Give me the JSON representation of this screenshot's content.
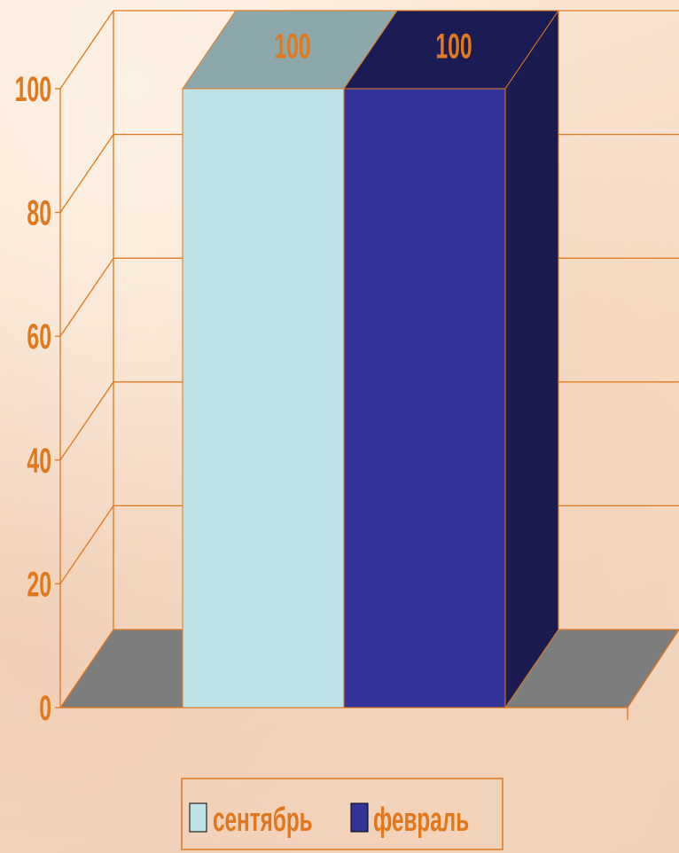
{
  "chart_data": {
    "type": "bar",
    "style": "3d-column",
    "title": "",
    "xlabel": "",
    "ylabel": "",
    "categories": [
      ""
    ],
    "series": [
      {
        "name": "сентябрь",
        "values": [
          100
        ],
        "color": "#bde3e6"
      },
      {
        "name": "февраль",
        "values": [
          100
        ],
        "color": "#333399"
      }
    ],
    "ylim": [
      0,
      100
    ],
    "yticks": [
      "0",
      "20",
      "40",
      "60",
      "80",
      "100"
    ],
    "data_labels": [
      "100",
      "100"
    ],
    "grid": true,
    "legend_position": "bottom-center",
    "colors": {
      "text": "#e0781e",
      "axis": "#e0781e",
      "floor": "#7d7d7d"
    }
  }
}
